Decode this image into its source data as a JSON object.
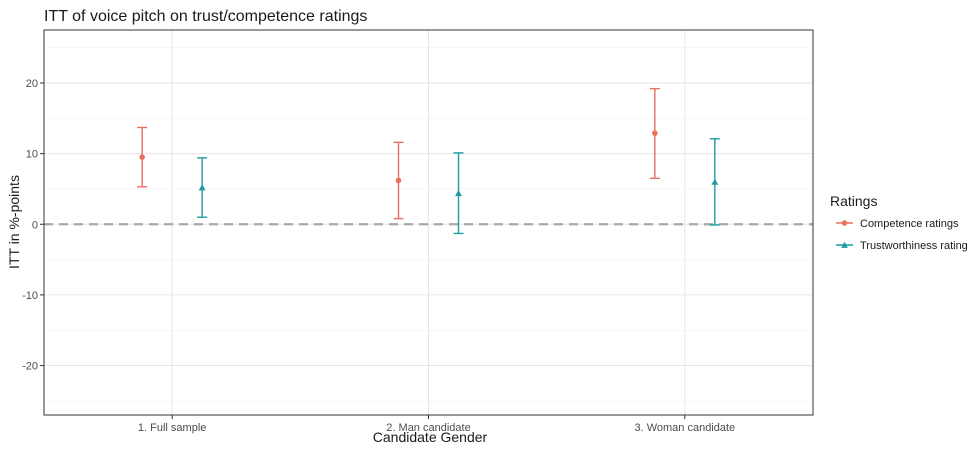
{
  "chart_data": {
    "type": "errorbar",
    "title": "ITT of voice pitch on trust/competence ratings",
    "xlabel": "Candidate Gender",
    "ylabel": "ITT in %-points",
    "categories": [
      "1. Full sample",
      "2. Man candidate",
      "3. Woman candidate"
    ],
    "ylim": [
      -27,
      27.5
    ],
    "yticks": [
      -20,
      -10,
      0,
      10,
      20
    ],
    "reference_line": 0,
    "grid": true,
    "legend": {
      "title": "Ratings",
      "position": "right"
    },
    "series": [
      {
        "name": "Competence ratings",
        "marker": "circle",
        "color": "#E8705E",
        "values": [
          9.5,
          6.2,
          12.9
        ],
        "lower": [
          5.3,
          0.8,
          6.5
        ],
        "upper": [
          13.7,
          11.6,
          19.2
        ]
      },
      {
        "name": "Trustworthiness ratings",
        "marker": "triangle",
        "color": "#1E9BA3",
        "values": [
          5.2,
          4.4,
          6.0
        ],
        "lower": [
          1.0,
          -1.3,
          -0.1
        ],
        "upper": [
          9.4,
          10.1,
          12.1
        ]
      }
    ]
  }
}
